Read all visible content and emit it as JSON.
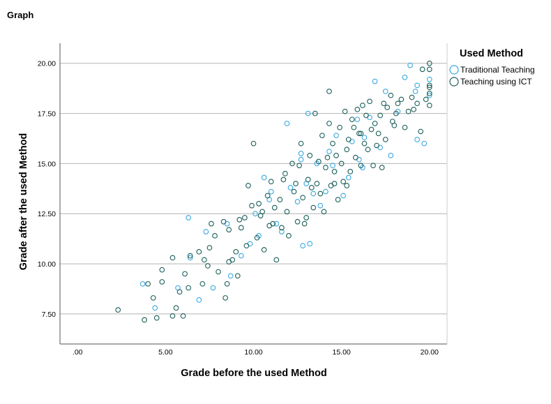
{
  "header": {
    "title": "Graph"
  },
  "colors": {
    "traditional": "#3aa8e0",
    "ict": "#1a5e58",
    "grid": "#b4b4b4",
    "axis": "#555555"
  },
  "chart_data": {
    "type": "scatter",
    "xlabel": "Grade before the used Method",
    "ylabel": "Grade after the used Method",
    "xlim": [
      -1.0,
      21.0
    ],
    "ylim": [
      6.0,
      21.0
    ],
    "xticks": [
      0,
      5,
      10,
      15,
      20
    ],
    "xtick_labels": [
      ".00",
      "5.00",
      "10.00",
      "15.00",
      "20.00"
    ],
    "yticks": [
      7.5,
      10,
      12.5,
      15,
      17.5,
      20
    ],
    "ytick_labels": [
      "7.50",
      "10.00",
      "12.50",
      "15.00",
      "17.50",
      "20.00"
    ],
    "grid": "horizontal",
    "legend": {
      "title": "Used Method",
      "position": "top-right"
    },
    "series": [
      {
        "name": "Traditional Teaching",
        "color": "#3aa8e0",
        "points": [
          [
            3.7,
            9.0
          ],
          [
            4.4,
            7.8
          ],
          [
            5.7,
            8.8
          ],
          [
            6.3,
            12.3
          ],
          [
            6.4,
            10.3
          ],
          [
            6.9,
            8.2
          ],
          [
            7.3,
            11.6
          ],
          [
            7.7,
            8.8
          ],
          [
            8.5,
            12.0
          ],
          [
            8.7,
            9.4
          ],
          [
            9.3,
            10.4
          ],
          [
            9.8,
            11.0
          ],
          [
            10.1,
            12.5
          ],
          [
            10.3,
            11.4
          ],
          [
            10.6,
            14.3
          ],
          [
            10.9,
            13.2
          ],
          [
            11.3,
            12.0
          ],
          [
            11.6,
            11.6
          ],
          [
            11.9,
            17.0
          ],
          [
            12.1,
            13.8
          ],
          [
            12.5,
            13.1
          ],
          [
            12.8,
            10.9
          ],
          [
            13.1,
            17.5
          ],
          [
            13.2,
            11.0
          ],
          [
            12.7,
            15.5
          ],
          [
            12.7,
            15.2
          ],
          [
            13.0,
            14.0
          ],
          [
            13.4,
            13.5
          ],
          [
            13.6,
            15.0
          ],
          [
            13.8,
            12.9
          ],
          [
            14.1,
            13.6
          ],
          [
            14.3,
            15.6
          ],
          [
            14.5,
            14.9
          ],
          [
            14.7,
            16.4
          ],
          [
            15.1,
            13.4
          ],
          [
            15.4,
            14.3
          ],
          [
            15.6,
            16.1
          ],
          [
            15.9,
            17.2
          ],
          [
            16.0,
            15.2
          ],
          [
            16.3,
            16.3
          ],
          [
            16.6,
            17.3
          ],
          [
            16.9,
            19.1
          ],
          [
            17.2,
            15.8
          ],
          [
            17.5,
            18.6
          ],
          [
            17.8,
            15.4
          ],
          [
            18.2,
            17.6
          ],
          [
            18.6,
            19.3
          ],
          [
            18.9,
            19.9
          ],
          [
            19.2,
            18.6
          ],
          [
            19.3,
            16.2
          ],
          [
            19.3,
            18.9
          ],
          [
            19.7,
            16.0
          ],
          [
            20.0,
            19.2
          ],
          [
            20.0,
            18.4
          ],
          [
            16.2,
            14.8
          ],
          [
            11.0,
            13.6
          ]
        ]
      },
      {
        "name": "Teaching using ICT",
        "color": "#1a5e58",
        "points": [
          [
            2.3,
            7.7
          ],
          [
            3.8,
            7.2
          ],
          [
            4.0,
            9.0
          ],
          [
            4.3,
            8.3
          ],
          [
            4.5,
            7.3
          ],
          [
            4.8,
            9.7
          ],
          [
            4.8,
            9.1
          ],
          [
            5.4,
            7.4
          ],
          [
            5.4,
            10.3
          ],
          [
            5.6,
            7.8
          ],
          [
            5.8,
            8.6
          ],
          [
            6.0,
            7.4
          ],
          [
            6.1,
            9.5
          ],
          [
            6.3,
            8.8
          ],
          [
            6.4,
            10.4
          ],
          [
            6.9,
            10.6
          ],
          [
            7.1,
            9.0
          ],
          [
            7.2,
            10.2
          ],
          [
            7.4,
            9.9
          ],
          [
            7.5,
            10.8
          ],
          [
            7.6,
            12.0
          ],
          [
            7.8,
            11.4
          ],
          [
            8.0,
            9.6
          ],
          [
            8.3,
            12.1
          ],
          [
            8.4,
            8.3
          ],
          [
            8.5,
            9.0
          ],
          [
            8.6,
            11.7
          ],
          [
            8.8,
            10.2
          ],
          [
            9.0,
            10.6
          ],
          [
            9.1,
            9.4
          ],
          [
            9.3,
            11.8
          ],
          [
            9.5,
            12.3
          ],
          [
            9.6,
            10.9
          ],
          [
            9.7,
            13.9
          ],
          [
            9.9,
            12.9
          ],
          [
            10.0,
            16.0
          ],
          [
            10.2,
            11.3
          ],
          [
            10.3,
            13.0
          ],
          [
            10.5,
            12.6
          ],
          [
            10.6,
            10.7
          ],
          [
            10.8,
            13.4
          ],
          [
            10.9,
            11.9
          ],
          [
            11.0,
            14.1
          ],
          [
            11.2,
            12.8
          ],
          [
            11.3,
            10.2
          ],
          [
            11.5,
            13.2
          ],
          [
            11.6,
            11.8
          ],
          [
            11.8,
            14.5
          ],
          [
            11.9,
            12.6
          ],
          [
            12.0,
            11.4
          ],
          [
            12.2,
            15.0
          ],
          [
            12.3,
            13.6
          ],
          [
            12.5,
            12.1
          ],
          [
            12.6,
            14.9
          ],
          [
            12.8,
            13.3
          ],
          [
            12.9,
            12.0
          ],
          [
            13.1,
            14.2
          ],
          [
            13.2,
            15.4
          ],
          [
            13.4,
            12.8
          ],
          [
            13.5,
            17.5
          ],
          [
            13.6,
            14.0
          ],
          [
            13.7,
            15.1
          ],
          [
            13.8,
            13.5
          ],
          [
            13.9,
            16.4
          ],
          [
            14.0,
            12.6
          ],
          [
            14.1,
            14.8
          ],
          [
            14.2,
            15.3
          ],
          [
            14.3,
            17.0
          ],
          [
            14.3,
            18.6
          ],
          [
            14.4,
            13.9
          ],
          [
            14.5,
            16.0
          ],
          [
            14.6,
            14.6
          ],
          [
            14.7,
            15.4
          ],
          [
            14.8,
            13.2
          ],
          [
            14.9,
            16.8
          ],
          [
            15.0,
            15.0
          ],
          [
            15.1,
            14.1
          ],
          [
            15.2,
            17.6
          ],
          [
            15.3,
            15.7
          ],
          [
            15.4,
            16.2
          ],
          [
            15.5,
            14.6
          ],
          [
            15.6,
            17.2
          ],
          [
            15.7,
            16.8
          ],
          [
            15.8,
            15.3
          ],
          [
            15.9,
            17.7
          ],
          [
            16.0,
            16.5
          ],
          [
            16.1,
            14.9
          ],
          [
            16.2,
            17.9
          ],
          [
            16.3,
            16.0
          ],
          [
            16.4,
            17.4
          ],
          [
            16.5,
            15.7
          ],
          [
            16.6,
            18.1
          ],
          [
            16.7,
            16.7
          ],
          [
            16.8,
            14.9
          ],
          [
            16.9,
            17.0
          ],
          [
            17.0,
            15.9
          ],
          [
            17.1,
            16.5
          ],
          [
            17.2,
            17.4
          ],
          [
            17.3,
            14.8
          ],
          [
            17.4,
            18.0
          ],
          [
            17.5,
            16.2
          ],
          [
            17.6,
            17.8
          ],
          [
            17.8,
            18.4
          ],
          [
            17.9,
            17.1
          ],
          [
            18.0,
            16.9
          ],
          [
            18.1,
            17.5
          ],
          [
            18.2,
            18.0
          ],
          [
            18.4,
            18.2
          ],
          [
            18.6,
            16.8
          ],
          [
            18.8,
            17.6
          ],
          [
            19.0,
            18.3
          ],
          [
            19.1,
            17.7
          ],
          [
            19.3,
            18.0
          ],
          [
            19.5,
            16.6
          ],
          [
            19.6,
            19.7
          ],
          [
            19.8,
            18.2
          ],
          [
            20.0,
            20.0
          ],
          [
            20.0,
            19.7
          ],
          [
            20.0,
            18.8
          ],
          [
            20.0,
            18.5
          ],
          [
            20.0,
            17.9
          ],
          [
            20.0,
            18.9
          ],
          [
            13.0,
            12.3
          ],
          [
            12.7,
            16.0
          ],
          [
            11.1,
            12.0
          ],
          [
            10.4,
            12.4
          ],
          [
            9.2,
            12.2
          ],
          [
            8.6,
            10.1
          ],
          [
            14.6,
            14.0
          ],
          [
            15.3,
            13.9
          ],
          [
            16.1,
            16.5
          ],
          [
            12.4,
            14.0
          ],
          [
            11.7,
            14.2
          ],
          [
            13.3,
            13.8
          ]
        ]
      }
    ]
  }
}
